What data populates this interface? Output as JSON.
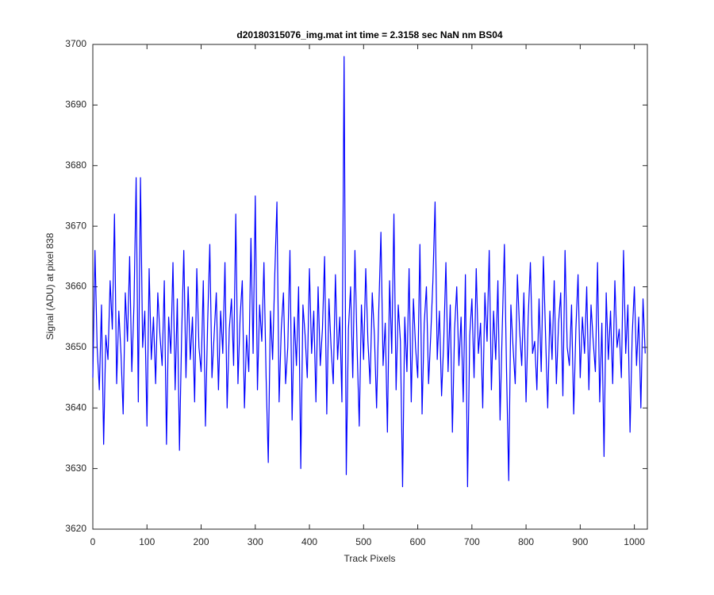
{
  "chart_data": {
    "type": "line",
    "title": "d20180315076_img.mat int time = 2.3158 sec  NaN nm BS04",
    "xlabel": "Track Pixels",
    "ylabel": "Signal (ADU) at pixel 838",
    "xlim": [
      0,
      1024
    ],
    "ylim": [
      3620,
      3700
    ],
    "xticks": [
      0,
      100,
      200,
      300,
      400,
      500,
      600,
      700,
      800,
      900,
      1000
    ],
    "yticks": [
      3620,
      3630,
      3640,
      3650,
      3660,
      3670,
      3680,
      3690,
      3700
    ],
    "grid": false,
    "x": [
      0,
      4,
      8,
      12,
      16,
      20,
      24,
      28,
      32,
      36,
      40,
      44,
      48,
      52,
      56,
      60,
      64,
      68,
      72,
      76,
      80,
      84,
      88,
      92,
      96,
      100,
      104,
      108,
      112,
      116,
      120,
      124,
      128,
      132,
      136,
      140,
      144,
      148,
      152,
      156,
      160,
      164,
      168,
      172,
      176,
      180,
      184,
      188,
      192,
      196,
      200,
      204,
      208,
      212,
      216,
      220,
      224,
      228,
      232,
      236,
      240,
      244,
      248,
      252,
      256,
      260,
      264,
      268,
      272,
      276,
      280,
      284,
      288,
      292,
      296,
      300,
      304,
      308,
      312,
      316,
      320,
      324,
      328,
      332,
      336,
      340,
      344,
      348,
      352,
      356,
      360,
      364,
      368,
      372,
      376,
      380,
      384,
      388,
      392,
      396,
      400,
      404,
      408,
      412,
      416,
      420,
      424,
      428,
      432,
      436,
      440,
      444,
      448,
      452,
      456,
      460,
      464,
      468,
      472,
      476,
      480,
      484,
      488,
      492,
      496,
      500,
      504,
      508,
      512,
      516,
      520,
      524,
      528,
      532,
      536,
      540,
      544,
      548,
      552,
      556,
      560,
      564,
      568,
      572,
      576,
      580,
      584,
      588,
      592,
      596,
      600,
      604,
      608,
      612,
      616,
      620,
      624,
      628,
      632,
      636,
      640,
      644,
      648,
      652,
      656,
      660,
      664,
      668,
      672,
      676,
      680,
      684,
      688,
      692,
      696,
      700,
      704,
      708,
      712,
      716,
      720,
      724,
      728,
      732,
      736,
      740,
      744,
      748,
      752,
      756,
      760,
      764,
      768,
      772,
      776,
      780,
      784,
      788,
      792,
      796,
      800,
      804,
      808,
      812,
      816,
      820,
      824,
      828,
      832,
      836,
      840,
      844,
      848,
      852,
      856,
      860,
      864,
      868,
      872,
      876,
      880,
      884,
      888,
      892,
      896,
      900,
      904,
      908,
      912,
      916,
      920,
      924,
      928,
      932,
      936,
      940,
      944,
      948,
      952,
      956,
      960,
      964,
      968,
      972,
      976,
      980,
      984,
      988,
      992,
      996,
      1000,
      1004,
      1008,
      1012,
      1016,
      1020
    ],
    "series": [
      {
        "name": "signal",
        "color": "#0000ff",
        "values": [
          3645,
          3666,
          3650,
          3643,
          3657,
          3634,
          3652,
          3648,
          3661,
          3653,
          3672,
          3644,
          3656,
          3649,
          3639,
          3659,
          3651,
          3665,
          3646,
          3657,
          3678,
          3641,
          3678,
          3650,
          3656,
          3637,
          3663,
          3648,
          3655,
          3644,
          3659,
          3652,
          3647,
          3661,
          3634,
          3655,
          3649,
          3664,
          3643,
          3658,
          3633,
          3652,
          3666,
          3645,
          3660,
          3648,
          3655,
          3641,
          3663,
          3650,
          3646,
          3661,
          3637,
          3654,
          3667,
          3645,
          3652,
          3659,
          3643,
          3656,
          3649,
          3664,
          3640,
          3653,
          3658,
          3647,
          3672,
          3644,
          3655,
          3661,
          3640,
          3652,
          3646,
          3668,
          3649,
          3675,
          3643,
          3657,
          3651,
          3664,
          3645,
          3631,
          3656,
          3648,
          3662,
          3674,
          3641,
          3653,
          3659,
          3644,
          3650,
          3666,
          3638,
          3655,
          3647,
          3660,
          3630,
          3657,
          3652,
          3645,
          3663,
          3649,
          3656,
          3641,
          3660,
          3647,
          3653,
          3665,
          3639,
          3658,
          3650,
          3644,
          3662,
          3648,
          3655,
          3641,
          3698,
          3629,
          3653,
          3660,
          3645,
          3666,
          3650,
          3637,
          3657,
          3648,
          3663,
          3651,
          3644,
          3659,
          3652,
          3640,
          3656,
          3669,
          3647,
          3654,
          3636,
          3661,
          3649,
          3672,
          3643,
          3657,
          3651,
          3627,
          3655,
          3646,
          3663,
          3641,
          3658,
          3650,
          3645,
          3667,
          3639,
          3654,
          3660,
          3644,
          3652,
          3661,
          3674,
          3648,
          3656,
          3642,
          3651,
          3664,
          3646,
          3657,
          3636,
          3653,
          3660,
          3647,
          3655,
          3641,
          3662,
          3627,
          3652,
          3658,
          3645,
          3663,
          3649,
          3654,
          3640,
          3659,
          3651,
          3666,
          3643,
          3656,
          3648,
          3661,
          3638,
          3653,
          3667,
          3646,
          3628,
          3657,
          3650,
          3644,
          3662,
          3653,
          3647,
          3659,
          3641,
          3655,
          3664,
          3649,
          3651,
          3643,
          3658,
          3646,
          3665,
          3652,
          3640,
          3656,
          3648,
          3661,
          3644,
          3654,
          3659,
          3642,
          3666,
          3650,
          3647,
          3657,
          3639,
          3653,
          3662,
          3645,
          3655,
          3649,
          3660,
          3643,
          3657,
          3651,
          3646,
          3664,
          3641,
          3654,
          3632,
          3659,
          3648,
          3656,
          3644,
          3661,
          3650,
          3653,
          3645,
          3666,
          3649,
          3657,
          3636,
          3652,
          3660,
          3647,
          3655,
          3640,
          3658,
          3649
        ]
      }
    ]
  }
}
